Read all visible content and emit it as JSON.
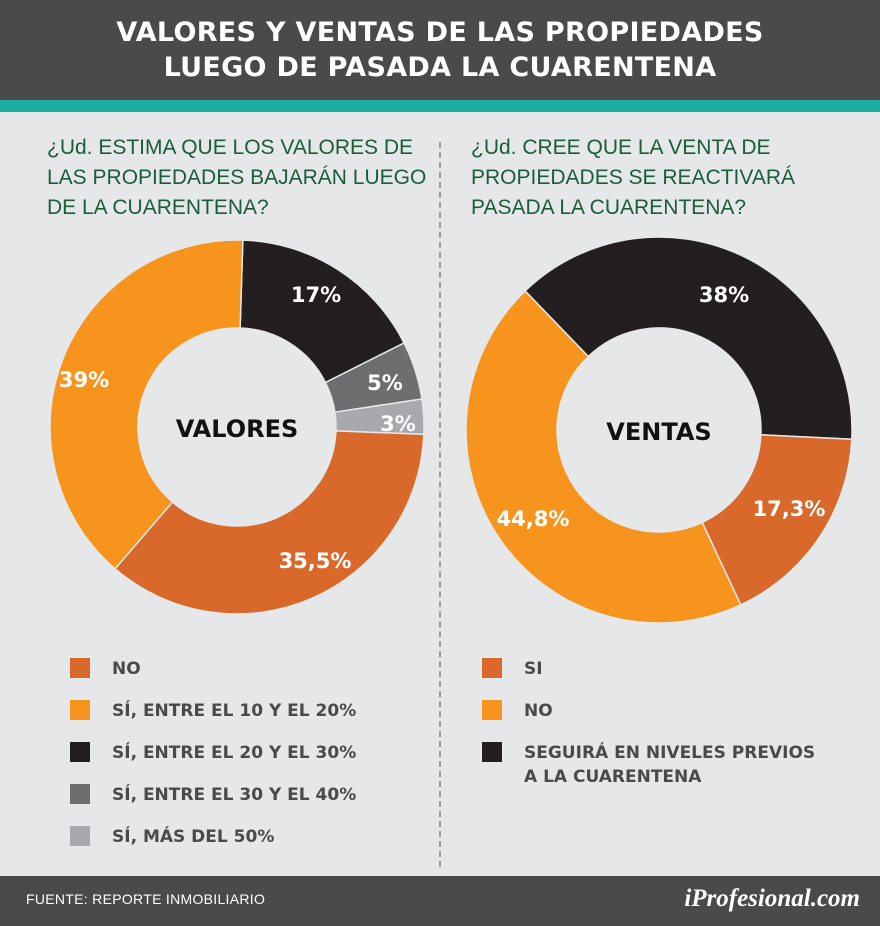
{
  "header": {
    "title_line1": "VALORES Y VENTAS DE LAS PROPIEDADES",
    "title_line2": "LUEGO DE PASADA LA CUARENTENA"
  },
  "colors": {
    "header_bg": "#4a4a4b",
    "accent_teal": "#1aaea0",
    "question_text": "#1b5c3a",
    "background": "#e6e7e8"
  },
  "chart_data": [
    {
      "type": "pie",
      "variant": "donut",
      "title": "¿Ud. ESTIMA QUE LOS VALORES DE LAS PROPIEDADES BAJARÁN LUEGO DE LA CUARENTENA?",
      "question_lines": [
        "¿Ud. ESTIMA QUE LOS VALORES DE",
        "LAS PROPIEDADES BAJARÁN LUEGO",
        "DE LA CUARENTENA?"
      ],
      "center_label": "VALORES",
      "start_offset_pct": 0.5,
      "slices": [
        {
          "label": "SÍ, ENTRE EL 20 Y EL 30%",
          "value": 17,
          "display": "17%",
          "color": "#231f20"
        },
        {
          "label": "SÍ, ENTRE EL 30 Y EL 40%",
          "value": 5,
          "display": "5%",
          "color": "#6d6e70"
        },
        {
          "label": "SÍ, MÁS DEL 50%",
          "value": 3,
          "display": "3%",
          "color": "#a7a9ac"
        },
        {
          "label": "NO",
          "value": 35.5,
          "display": "35,5%",
          "color": "#d9692a"
        },
        {
          "label": "SÍ, ENTRE EL 10 Y EL 20%",
          "value": 39,
          "display": "39%",
          "color": "#f7941e"
        }
      ],
      "legend": [
        {
          "label": "NO",
          "color": "#d9692a"
        },
        {
          "label": "SÍ, ENTRE EL 10 Y EL 20%",
          "color": "#f7941e"
        },
        {
          "label": "SÍ, ENTRE EL 20 Y EL 30%",
          "color": "#231f20"
        },
        {
          "label": "SÍ, ENTRE EL 30 Y EL 40%",
          "color": "#6d6e70"
        },
        {
          "label": "SÍ, MÁS DEL 50%",
          "color": "#a7a9ac"
        }
      ]
    },
    {
      "type": "pie",
      "variant": "donut",
      "title": "¿Ud. CREE QUE LA VENTA DE PROPIEDADES SE REACTIVARÁ PASADA LA CUARENTENA?",
      "question_lines": [
        "¿Ud. CREE QUE LA VENTA DE",
        "PROPIEDADES SE REACTIVARÁ",
        "PASADA LA CUARENTENA?"
      ],
      "center_label": "VENTAS",
      "start_offset_pct": -12.2,
      "slices": [
        {
          "label": "SEGUIRÁ EN NIVELES PREVIOS A LA CUARENTENA",
          "value": 38,
          "display": "38%",
          "color": "#231f20"
        },
        {
          "label": "SI",
          "value": 17.3,
          "display": "17,3%",
          "color": "#d9692a"
        },
        {
          "label": "NO",
          "value": 44.8,
          "display": "44,8%",
          "color": "#f7941e"
        }
      ],
      "legend": [
        {
          "label": "SI",
          "color": "#d9692a"
        },
        {
          "label": "NO",
          "color": "#f7941e"
        },
        {
          "label": "SEGUIRÁ EN NIVELES PREVIOS",
          "label2": "A LA CUARENTENA",
          "color": "#231f20"
        }
      ]
    }
  ],
  "footer": {
    "source": "FUENTE: REPORTE INMOBILIARIO",
    "brand": "iProfesional.com"
  }
}
